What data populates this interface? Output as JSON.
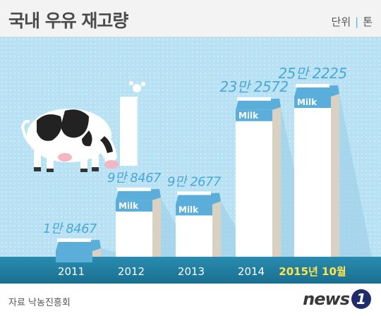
{
  "header": {
    "title": "국내 우유 재고량",
    "unit_label": "단위",
    "unit_value": "톤"
  },
  "footer": {
    "source": "자료 낙농진흥회",
    "logo_word": "news",
    "logo_badge": "1"
  },
  "colors": {
    "background": "#b8e1f4",
    "label": "#4aa8d8",
    "axis_band": "#1f7fa3",
    "highlight": "#ffe44d",
    "carton_front": "#ffffff",
    "carton_side": "#d9d1c1",
    "carton_top": "#5aaed9"
  },
  "chart_data": {
    "type": "bar",
    "title": "국내 우유 재고량",
    "unit": "톤",
    "categories": [
      "2011",
      "2012",
      "2013",
      "2014",
      "2015년 10월"
    ],
    "values": [
      18467,
      98467,
      92677,
      232572,
      252225
    ],
    "value_labels": [
      "1만 8467",
      "9만 8467",
      "9만 2677",
      "23만 2572",
      "25만 2225"
    ],
    "carton_text": [
      "",
      "Milk",
      "Milk",
      "Milk",
      "Milk"
    ],
    "highlight_index": 4,
    "ylim": [
      0,
      252225
    ]
  }
}
